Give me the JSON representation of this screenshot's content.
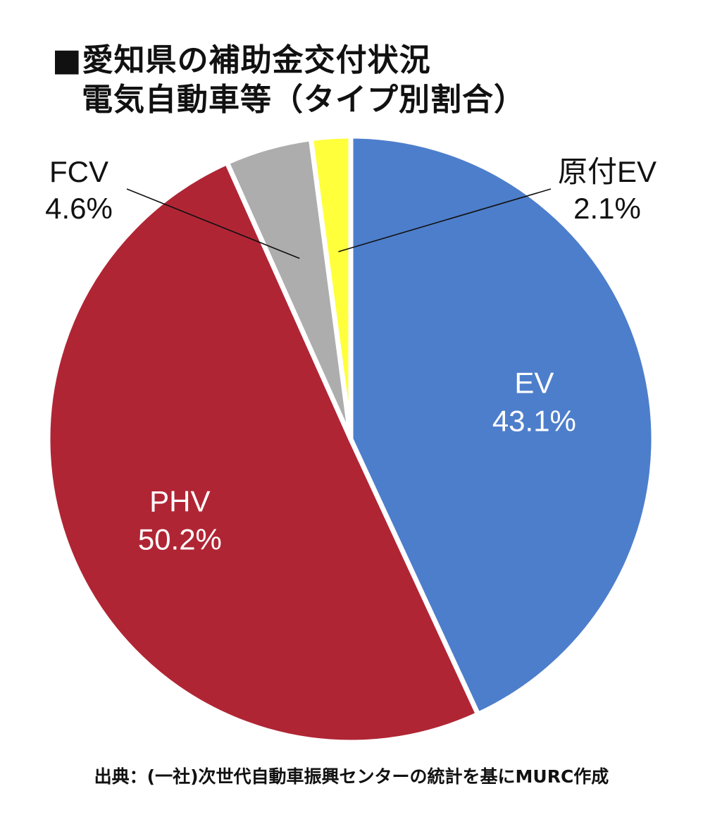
{
  "title": {
    "line1": "■愛知県の補助金交付状況",
    "line2": "電気自動車等（タイプ別割合）"
  },
  "source": "出典：(一社)次世代自動車振興センターの統計を基にMURC作成",
  "chart_data": {
    "type": "pie",
    "start_angle_deg": 0,
    "direction": "clockwise",
    "slices": [
      {
        "label": "EV",
        "value": 43.1,
        "value_label": "43.1%",
        "color": "#4d7ecb",
        "label_color": "#ffffff",
        "label_inside": true
      },
      {
        "label": "PHV",
        "value": 50.2,
        "value_label": "50.2%",
        "color": "#b02534",
        "label_color": "#ffffff",
        "label_inside": true
      },
      {
        "label": "FCV",
        "value": 4.6,
        "value_label": "4.6%",
        "color": "#adadad",
        "label_color": "#111111",
        "label_inside": false,
        "callout_side": "left"
      },
      {
        "label": "原付EV",
        "value": 2.1,
        "value_label": "2.1%",
        "color": "#ffff3c",
        "label_color": "#111111",
        "label_inside": false,
        "callout_side": "right"
      }
    ]
  }
}
